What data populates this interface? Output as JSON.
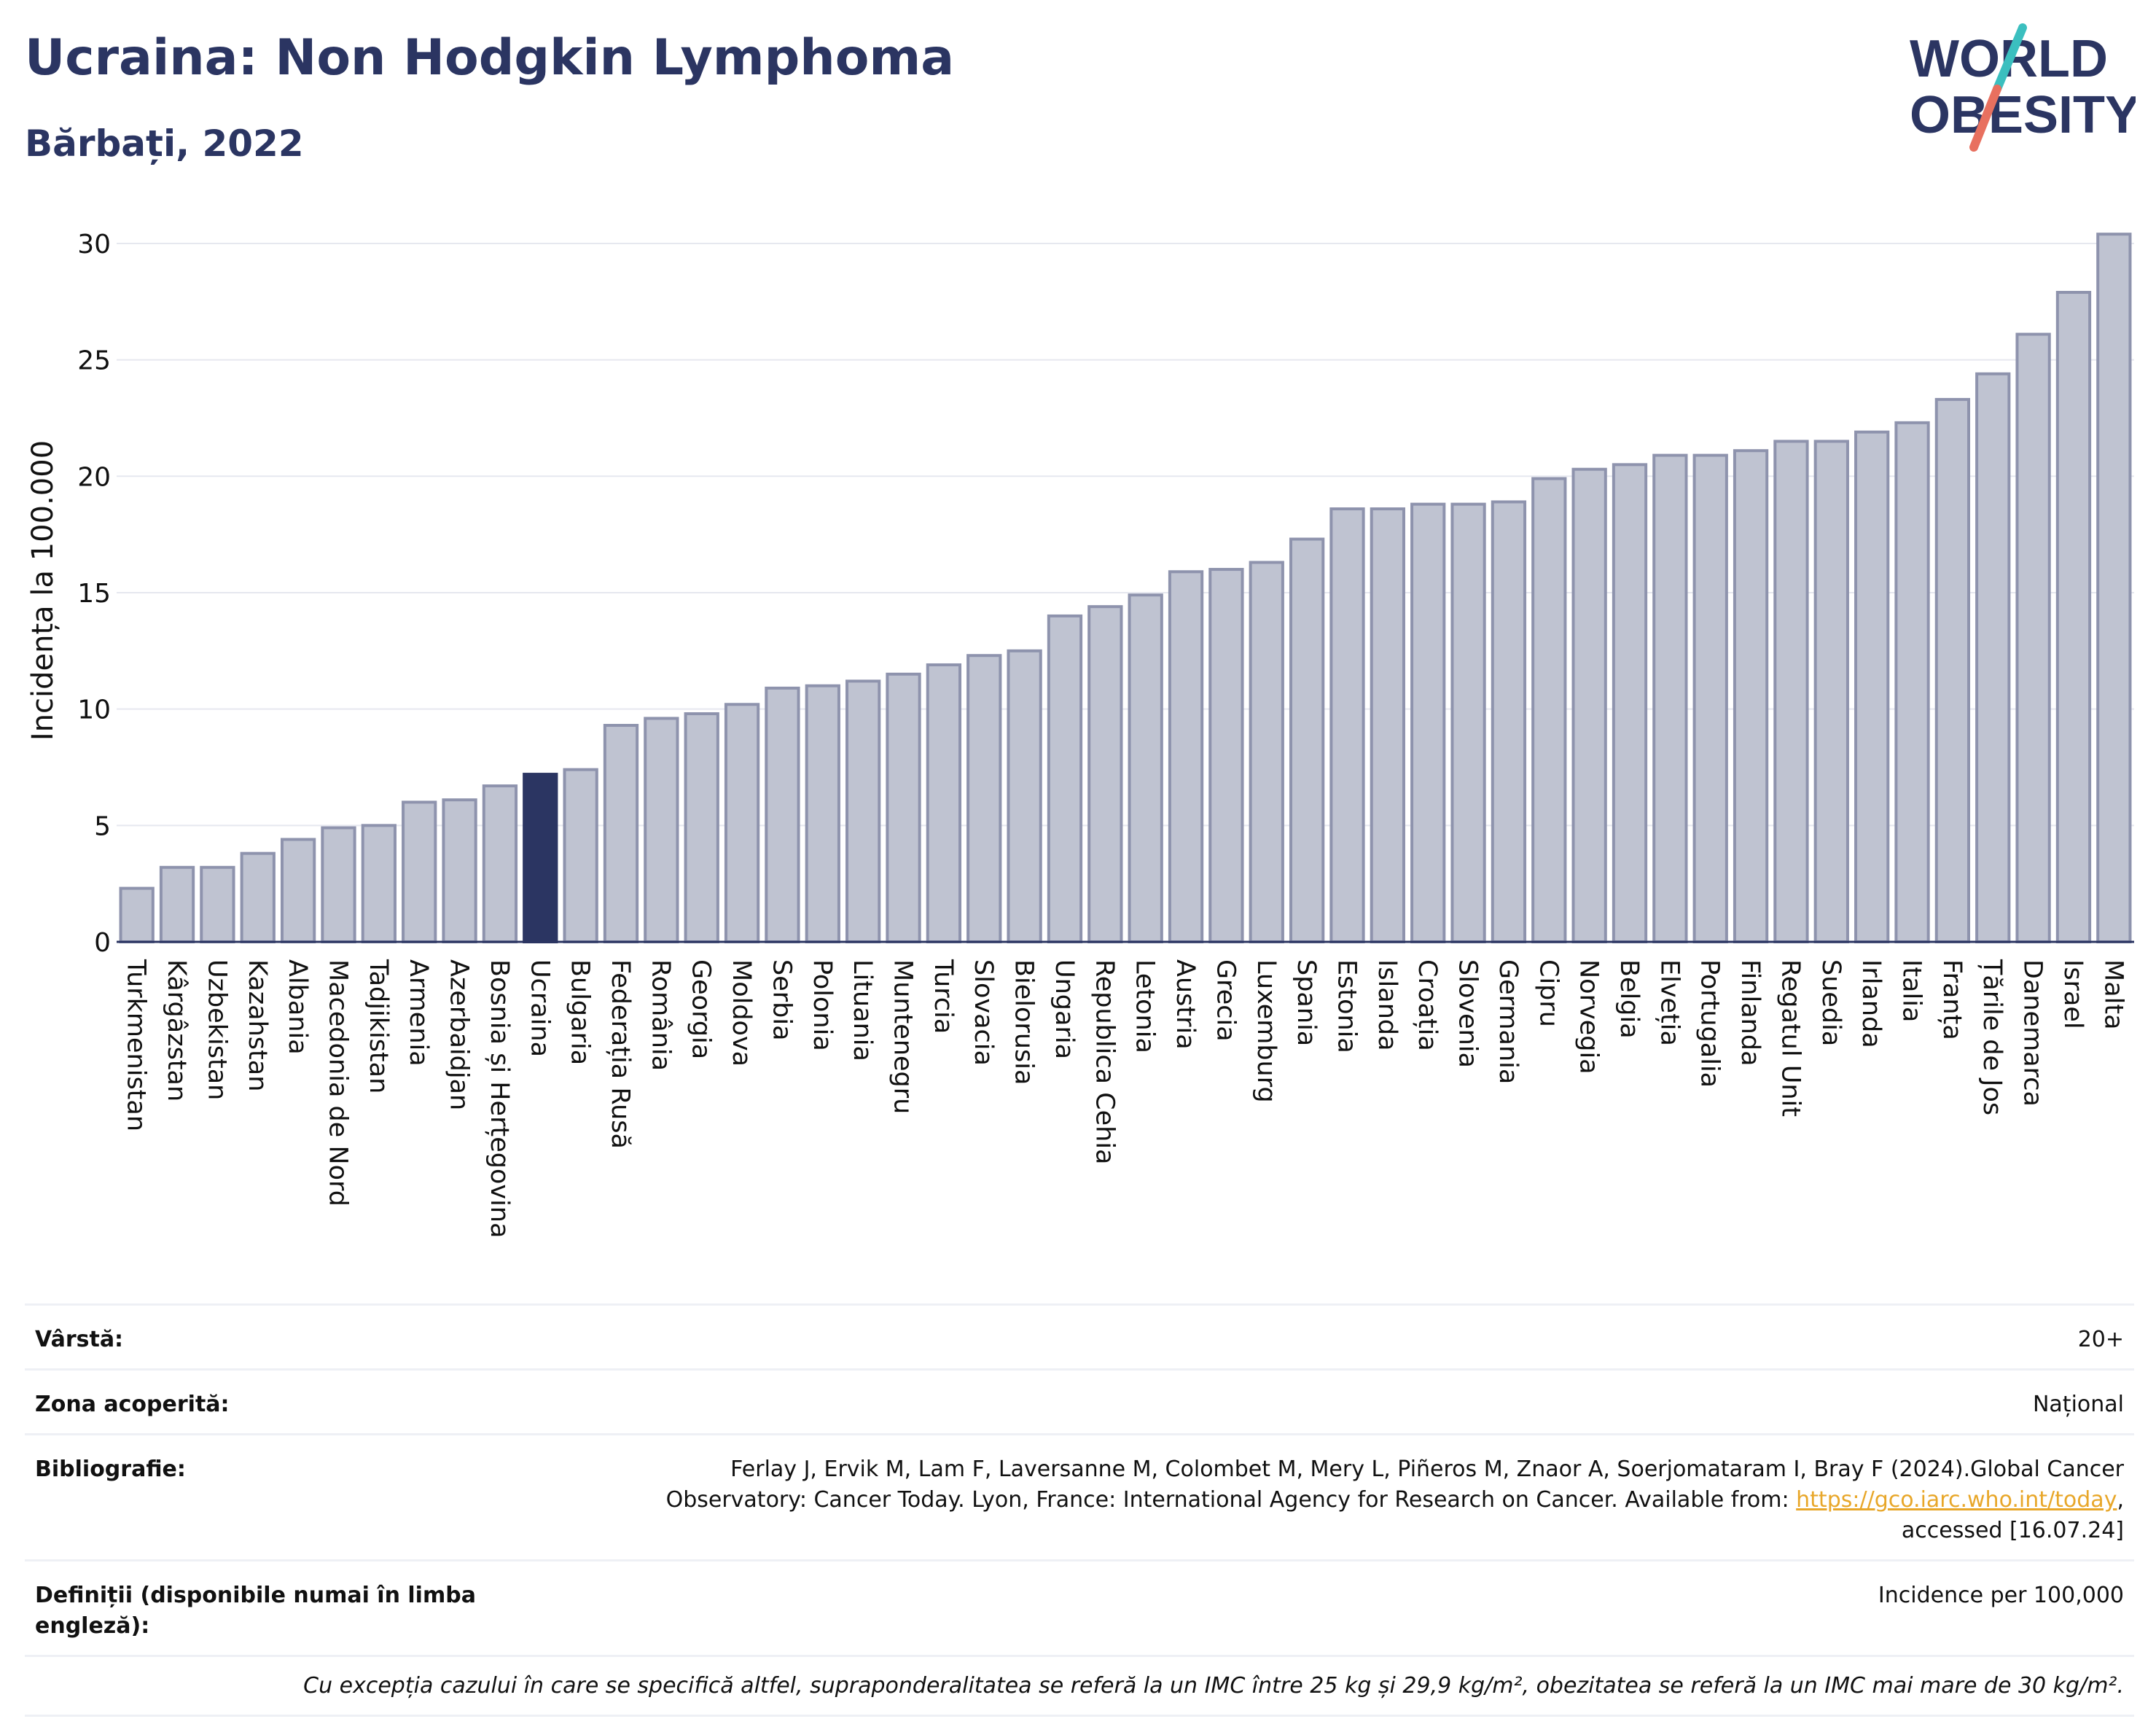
{
  "header": {
    "title": "Ucraina: Non Hodgkin Lymphoma",
    "subtitle": "Bărbați, 2022",
    "logo_line1": "WORLD",
    "logo_line2": "OBESITY"
  },
  "colors": {
    "bar": "#bfc3d1",
    "bar_stroke": "#8e93ad",
    "highlight": "#2b3562",
    "title": "#2b3562",
    "logo_teal": "#3bbfbf",
    "logo_coral": "#e8705f"
  },
  "chart_data": {
    "type": "bar",
    "ylabel": "Incidența la 100.000",
    "ylim": [
      0,
      30.5
    ],
    "yticks": [
      0,
      5,
      10,
      15,
      20,
      25,
      30
    ],
    "grid": true,
    "highlight": "Ucraina",
    "categories": [
      "Turkmenistan",
      "Kârgâzstan",
      "Uzbekistan",
      "Kazahstan",
      "Albania",
      "Macedonia de Nord",
      "Tadjikistan",
      "Armenia",
      "Azerbaidjan",
      "Bosnia și Herțegovina",
      "Ucraina",
      "Bulgaria",
      "Federația Rusă",
      "România",
      "Georgia",
      "Moldova",
      "Serbia",
      "Polonia",
      "Lituania",
      "Muntenegru",
      "Turcia",
      "Slovacia",
      "Bielorusia",
      "Ungaria",
      "Republica Cehia",
      "Letonia",
      "Austria",
      "Grecia",
      "Luxemburg",
      "Spania",
      "Estonia",
      "Islanda",
      "Croația",
      "Slovenia",
      "Germania",
      "Cipru",
      "Norvegia",
      "Belgia",
      "Elveția",
      "Portugalia",
      "Finlanda",
      "Regatul Unit",
      "Suedia",
      "Irlanda",
      "Italia",
      "Franța",
      "Țările de Jos",
      "Danemarca",
      "Israel",
      "Malta"
    ],
    "values": [
      2.3,
      3.2,
      3.2,
      3.8,
      4.4,
      4.9,
      5.0,
      6.0,
      6.1,
      6.7,
      7.2,
      7.4,
      9.3,
      9.6,
      9.8,
      10.2,
      10.9,
      11.0,
      11.2,
      11.5,
      11.9,
      12.3,
      12.5,
      14.0,
      14.4,
      14.9,
      15.9,
      16.0,
      16.3,
      17.3,
      18.6,
      18.6,
      18.8,
      18.8,
      18.9,
      19.9,
      20.3,
      20.5,
      20.9,
      20.9,
      21.1,
      21.5,
      21.5,
      21.9,
      22.3,
      23.3,
      24.4,
      26.1,
      27.9,
      30.4
    ]
  },
  "meta": {
    "age_label": "Vârstă:",
    "age_value": "20+",
    "coverage_label": "Zona acoperită:",
    "coverage_value": "Național",
    "biblio_label": "Bibliografie:",
    "biblio_text1": "Ferlay J, Ervik M, Lam F, Laversanne M, Colombet M, Mery L, Piñeros M, Znaor A, Soerjomataram I, Bray F (2024).Global Cancer",
    "biblio_text2": "Observatory: Cancer Today. Lyon, France: International Agency for Research on Cancer. Available from: ",
    "biblio_link": "https://gco.iarc.who.int/today",
    "biblio_text3": ",",
    "biblio_text4": "accessed [16.07.24]",
    "definitions_label": "Definiții (disponibile numai în limba engleză):",
    "definitions_value": "Incidence per 100,000",
    "footnote": "Cu excepția cazului în care se specifică altfel, supraponderalitatea se referă la un IMC între 25 kg și 29,9 kg/m², obezitatea se referă la un IMC mai mare de 30 kg/m²."
  }
}
